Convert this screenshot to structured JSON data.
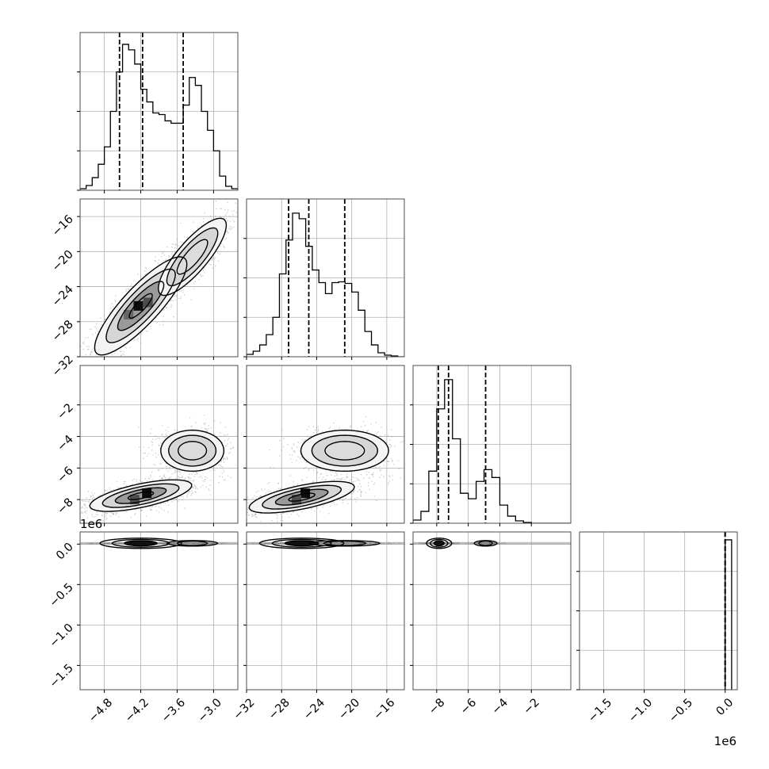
{
  "chart_data": {
    "type": "corner",
    "title": "",
    "grid": true,
    "colors": {
      "line": "#000000",
      "grid": "#b0b0b0",
      "points": "#7a7a7a",
      "frame": "#4d4d4d"
    },
    "params": [
      {
        "label": "",
        "range": [
          -5.2,
          -2.6
        ],
        "ticks": [
          -4.8,
          -4.2,
          -3.6,
          -3.0
        ],
        "tick_labels": [
          "−4.8",
          "−4.2",
          "−3.6",
          "−3.0"
        ]
      },
      {
        "label": "",
        "range": [
          -32,
          -14
        ],
        "ticks": [
          -32,
          -28,
          -24,
          -20,
          -16
        ],
        "tick_labels": [
          "−32",
          "−28",
          "−24",
          "−20",
          "−16"
        ]
      },
      {
        "label": "",
        "range": [
          -9.5,
          0.5
        ],
        "ticks": [
          -8,
          -6,
          -4,
          -2
        ],
        "tick_labels": [
          "−8",
          "−6",
          "−4",
          "−2"
        ]
      },
      {
        "label": "",
        "range": [
          -1800000,
          150000
        ],
        "ticks": [
          -1500000,
          -1000000,
          -500000,
          0
        ],
        "tick_labels": [
          "−1.5",
          "−1.0",
          "−0.5",
          "0.0"
        ],
        "offset_label": "1e6"
      }
    ],
    "row_ticks": [
      {
        "row": 1,
        "ticks": [
          -32,
          -28,
          -24,
          -20,
          -16
        ],
        "tick_labels": [
          "−32",
          "−28",
          "−24",
          "−20",
          "−16"
        ]
      },
      {
        "row": 2,
        "ticks": [
          -8,
          -6,
          -4,
          -2
        ],
        "tick_labels": [
          "−8",
          "−6",
          "−4",
          "−2"
        ]
      },
      {
        "row": 3,
        "ticks": [
          -1500000,
          -1000000,
          -500000,
          0
        ],
        "tick_labels": [
          "−1.5",
          "−1.0",
          "−0.5",
          "0.0"
        ],
        "offset_label": "1e6"
      }
    ],
    "histograms": [
      {
        "param": 0,
        "bin_edges": [
          -5.2,
          -5.1,
          -5.0,
          -4.9,
          -4.8,
          -4.7,
          -4.6,
          -4.5,
          -4.4,
          -4.3,
          -4.2,
          -4.1,
          -4.0,
          -3.9,
          -3.8,
          -3.7,
          -3.6,
          -3.5,
          -3.4,
          -3.3,
          -3.2,
          -3.1,
          -3.0,
          -2.9,
          -2.8,
          -2.7,
          -2.6
        ],
        "counts": [
          2,
          6,
          16,
          33,
          55,
          100,
          150,
          185,
          178,
          160,
          128,
          112,
          98,
          96,
          88,
          85,
          85,
          108,
          143,
          133,
          100,
          76,
          50,
          18,
          5,
          2
        ],
        "ylim": [
          0,
          200
        ],
        "quantiles": [
          -4.55,
          -4.17,
          -3.5
        ]
      },
      {
        "param": 1,
        "bin_edges": [
          -32,
          -31.25,
          -30.5,
          -29.75,
          -29,
          -28.25,
          -27.5,
          -26.75,
          -26,
          -25.25,
          -24.5,
          -23.75,
          -23,
          -22.25,
          -21.5,
          -20.75,
          -20,
          -19.25,
          -18.5,
          -17.75,
          -17,
          -16.25,
          -15.5,
          -14.75,
          -14
        ],
        "counts": [
          3,
          7,
          15,
          28,
          50,
          105,
          148,
          182,
          175,
          140,
          110,
          94,
          80,
          94,
          95,
          93,
          82,
          59,
          32,
          15,
          5,
          2,
          1,
          0
        ],
        "ylim": [
          0,
          200
        ],
        "quantiles": [
          -27.2,
          -24.9,
          -20.8
        ]
      },
      {
        "param": 2,
        "bin_edges": [
          -9.5,
          -9.0,
          -8.5,
          -8.0,
          -7.5,
          -7.0,
          -6.5,
          -6.0,
          -5.5,
          -5.0,
          -4.5,
          -4.0,
          -3.5,
          -3.0,
          -2.5,
          -2.0,
          -1.5,
          -1.0,
          -0.5,
          0.0,
          0.5
        ],
        "counts": [
          4,
          15,
          66,
          145,
          182,
          107,
          38,
          31,
          53,
          68,
          58,
          23,
          9,
          3,
          1,
          0,
          0,
          0,
          0,
          0
        ],
        "ylim": [
          0,
          200
        ],
        "quantiles": [
          -7.9,
          -7.25,
          -4.9
        ]
      },
      {
        "param": 3,
        "bin_edges": [
          0,
          80000
        ],
        "counts": [
          190
        ],
        "ylim": [
          0,
          200
        ],
        "quantiles": [
          0,
          0,
          0
        ]
      }
    ],
    "scatter_panels": [
      {
        "x": 0,
        "y": 1,
        "modes": [
          {
            "cx": -4.2,
            "cy": -26.2,
            "rx": 0.38,
            "ry": 2.8,
            "rho": 0.85,
            "weight": 0.62
          },
          {
            "cx": -3.35,
            "cy": -20.6,
            "rx": 0.28,
            "ry": 2.2,
            "rho": 0.82,
            "weight": 0.38
          }
        ],
        "density_peaks": [
          {
            "cx": -4.24,
            "cy": -26.2,
            "level": 0.95
          },
          {
            "cx": -4.08,
            "cy": -25.8,
            "level": 0.7
          },
          {
            "cx": -4.4,
            "cy": -27.2,
            "level": 0.6
          }
        ]
      },
      {
        "x": 0,
        "y": 2,
        "modes": [
          {
            "cx": -4.2,
            "cy": -7.75,
            "rx": 0.42,
            "ry": 0.5,
            "rho": 0.65,
            "weight": 0.62
          },
          {
            "cx": -3.35,
            "cy": -4.9,
            "rx": 0.26,
            "ry": 0.65,
            "rho": 0.0,
            "weight": 0.38
          }
        ],
        "density_peaks": [
          {
            "cx": -4.1,
            "cy": -7.6,
            "level": 0.95
          },
          {
            "cx": -4.3,
            "cy": -8.0,
            "level": 0.7
          }
        ]
      },
      {
        "x": 1,
        "y": 2,
        "modes": [
          {
            "cx": -25.7,
            "cy": -7.85,
            "rx": 3.0,
            "ry": 0.5,
            "rho": 0.65,
            "weight": 0.62
          },
          {
            "cx": -20.8,
            "cy": -4.9,
            "rx": 2.5,
            "ry": 0.65,
            "rho": 0.0,
            "weight": 0.38
          }
        ],
        "density_peaks": [
          {
            "cx": -25.3,
            "cy": -7.6,
            "level": 0.95
          },
          {
            "cx": -26.3,
            "cy": -8.0,
            "level": 0.7
          }
        ]
      },
      {
        "x": 0,
        "y": 3,
        "modes": [
          {
            "cx": -4.2,
            "cy": 10000,
            "rx": 0.42,
            "ry": 10000,
            "rho": 0.0,
            "weight": 0.62
          },
          {
            "cx": -3.35,
            "cy": 10000,
            "rx": 0.26,
            "ry": 10000,
            "rho": 0.0,
            "weight": 0.38
          }
        ],
        "density_peaks": [
          {
            "cx": -4.25,
            "cy": 10000,
            "level": 0.95
          }
        ]
      },
      {
        "x": 1,
        "y": 3,
        "modes": [
          {
            "cx": -25.7,
            "cy": 10000,
            "rx": 3.0,
            "ry": 10000,
            "rho": 0.0,
            "weight": 0.62
          },
          {
            "cx": -20.8,
            "cy": 10000,
            "rx": 2.5,
            "ry": 10000,
            "rho": 0.0,
            "weight": 0.38
          }
        ],
        "density_peaks": [
          {
            "cx": -25.7,
            "cy": 10000,
            "level": 0.95
          }
        ]
      },
      {
        "x": 2,
        "y": 3,
        "modes": [
          {
            "cx": -7.85,
            "cy": 10000,
            "rx": 0.5,
            "ry": 10000,
            "rho": 0.0,
            "weight": 0.62
          },
          {
            "cx": -4.9,
            "cy": 10000,
            "rx": 0.45,
            "ry": 10000,
            "rho": 0.0,
            "weight": 0.38
          }
        ],
        "density_peaks": [
          {
            "cx": -7.85,
            "cy": 10000,
            "level": 0.98
          }
        ]
      }
    ]
  }
}
